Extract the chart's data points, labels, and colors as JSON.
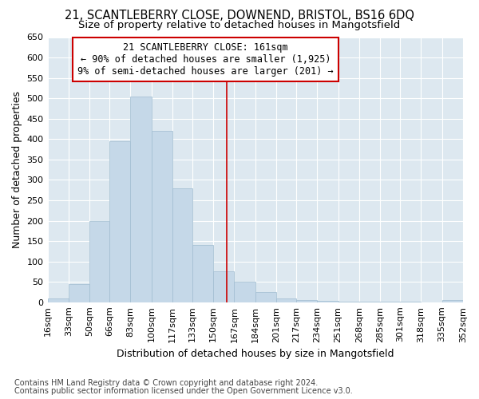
{
  "title": "21, SCANTLEBERRY CLOSE, DOWNEND, BRISTOL, BS16 6DQ",
  "subtitle": "Size of property relative to detached houses in Mangotsfield",
  "xlabel": "Distribution of detached houses by size in Mangotsfield",
  "ylabel": "Number of detached properties",
  "footnote1": "Contains HM Land Registry data © Crown copyright and database right 2024.",
  "footnote2": "Contains public sector information licensed under the Open Government Licence v3.0.",
  "legend_line1": "21 SCANTLEBERRY CLOSE: 161sqm",
  "legend_line2": "← 90% of detached houses are smaller (1,925)",
  "legend_line3": "9% of semi-detached houses are larger (201) →",
  "bar_edges": [
    16,
    33,
    50,
    66,
    83,
    100,
    117,
    133,
    150,
    167,
    184,
    201,
    217,
    234,
    251,
    268,
    285,
    301,
    318,
    335,
    352
  ],
  "bar_heights": [
    10,
    45,
    200,
    395,
    505,
    420,
    280,
    140,
    75,
    50,
    25,
    10,
    5,
    3,
    2,
    1,
    1,
    1,
    0,
    5
  ],
  "bar_color": "#c5d8e8",
  "bar_edge_color": "#a0bcd0",
  "vertical_line_color": "#cc0000",
  "vertical_line_x": 161,
  "ylim": [
    0,
    650
  ],
  "yticks": [
    0,
    50,
    100,
    150,
    200,
    250,
    300,
    350,
    400,
    450,
    500,
    550,
    600,
    650
  ],
  "fig_bg_color": "#ffffff",
  "plot_bg_color": "#dde8f0",
  "grid_color": "#ffffff",
  "legend_box_color": "#ffffff",
  "legend_border_color": "#cc0000",
  "title_fontsize": 10.5,
  "subtitle_fontsize": 9.5,
  "tick_fontsize": 8,
  "ylabel_fontsize": 9,
  "xlabel_fontsize": 9,
  "footnote_fontsize": 7
}
